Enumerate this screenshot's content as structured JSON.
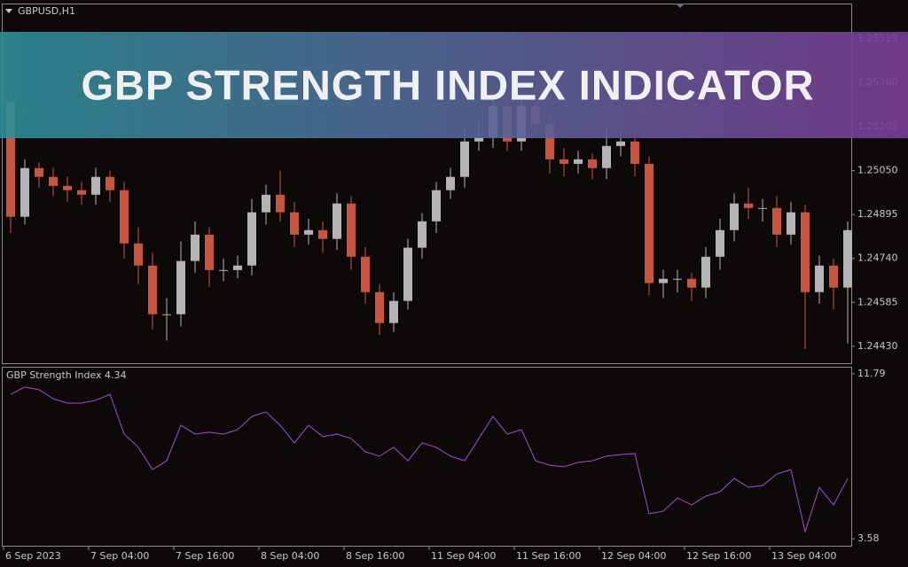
{
  "banner": "GBP STRENGTH INDEX INDICATOR",
  "chart_data": [
    {
      "type": "candlestick",
      "title": "GBPUSD,H1",
      "up_color": "#b4b4b4",
      "down_color": "#c8553f",
      "open": [
        1.25293,
        1.24887,
        1.25059,
        1.25028,
        1.24996,
        1.24981,
        1.24965,
        1.25028,
        1.24981,
        1.24793,
        1.24715,
        1.24543,
        1.24543,
        1.24731,
        1.24824,
        1.24699,
        1.24699,
        1.24715,
        1.24903,
        1.24965,
        1.24903,
        1.24824,
        1.2484,
        1.24809,
        1.24934,
        1.24746,
        1.24621,
        1.24512,
        1.2459,
        1.24778,
        1.24871,
        1.24981,
        1.25028,
        1.25153,
        1.25168,
        1.25278,
        1.25153,
        1.25278,
        1.25215,
        1.2509,
        1.25074,
        1.2509,
        1.25059,
        1.25137,
        1.25153,
        1.25074,
        1.24653,
        1.24668,
        1.24668,
        1.24637,
        1.24746,
        1.2484,
        1.24934,
        1.24918,
        1.24918,
        1.24824,
        1.24903,
        1.24621,
        1.24715,
        1.24637
      ],
      "high": [
        1.2533,
        1.2509,
        1.2508,
        1.2506,
        1.2503,
        1.2501,
        1.2506,
        1.2505,
        1.2501,
        1.2485,
        1.2476,
        1.246,
        1.248,
        1.2487,
        1.2485,
        1.2474,
        1.2475,
        1.2495,
        1.25,
        1.2505,
        1.2494,
        1.2488,
        1.2487,
        1.2497,
        1.2496,
        1.2478,
        1.2465,
        1.2462,
        1.2481,
        1.249,
        1.2501,
        1.2506,
        1.252,
        1.2523,
        1.2533,
        1.2531,
        1.2532,
        1.253,
        1.2525,
        1.2513,
        1.2512,
        1.2511,
        1.252,
        1.2519,
        1.2518,
        1.251,
        1.247,
        1.247,
        1.2469,
        1.2478,
        1.2488,
        1.2497,
        1.2499,
        1.2495,
        1.2496,
        1.2494,
        1.2493,
        1.2475,
        1.2474,
        1.2487
      ],
      "low": [
        1.2483,
        1.2486,
        1.2499,
        1.2496,
        1.2494,
        1.2493,
        1.2493,
        1.2494,
        1.2474,
        1.2465,
        1.2449,
        1.2445,
        1.245,
        1.2469,
        1.2464,
        1.2466,
        1.2467,
        1.2468,
        1.2486,
        1.2487,
        1.2478,
        1.2479,
        1.2476,
        1.2477,
        1.247,
        1.2458,
        1.2447,
        1.2448,
        1.2456,
        1.2474,
        1.2483,
        1.2495,
        1.2499,
        1.2512,
        1.2513,
        1.2512,
        1.2512,
        1.2517,
        1.2504,
        1.2503,
        1.2504,
        1.2502,
        1.2502,
        1.251,
        1.2503,
        1.2461,
        1.246,
        1.2462,
        1.2459,
        1.246,
        1.247,
        1.248,
        1.2488,
        1.2487,
        1.2478,
        1.2479,
        1.2442,
        1.2458,
        1.2456,
        1.2444
      ],
      "close": [
        1.24887,
        1.25059,
        1.25028,
        1.24996,
        1.24981,
        1.24965,
        1.25028,
        1.24981,
        1.24793,
        1.24715,
        1.24543,
        1.24543,
        1.24731,
        1.24824,
        1.24699,
        1.24699,
        1.24715,
        1.24903,
        1.24965,
        1.24903,
        1.24824,
        1.2484,
        1.24809,
        1.24934,
        1.24746,
        1.24621,
        1.24512,
        1.2459,
        1.24778,
        1.24871,
        1.24981,
        1.25028,
        1.25153,
        1.25168,
        1.25278,
        1.25153,
        1.25278,
        1.25215,
        1.2509,
        1.25074,
        1.2509,
        1.25059,
        1.25137,
        1.25153,
        1.25074,
        1.24653,
        1.24668,
        1.24668,
        1.24637,
        1.24746,
        1.2484,
        1.24934,
        1.24918,
        1.24918,
        1.24824,
        1.24903,
        1.24621,
        1.24715,
        1.24637,
        1.2484
      ],
      "ylim": [
        1.2437,
        1.2564
      ],
      "yticks": [
        1.25515,
        {
          "value": 1.2536,
          "label": "1.25360"
        },
        1.25205,
        {
          "value": 1.2505,
          "label": "1.25050"
        },
        1.24895,
        {
          "value": 1.2474,
          "label": "1.24740"
        },
        1.24585,
        {
          "value": 1.2443,
          "label": "1.24430"
        }
      ]
    },
    {
      "type": "line",
      "title": "GBP Strength Index 4.34",
      "color": "#a548e0",
      "categories": [
        "6 Sep 2023",
        null,
        null,
        null,
        null,
        null,
        "7 Sep 04:00",
        null,
        null,
        null,
        null,
        null,
        "7 Sep 16:00",
        null,
        null,
        null,
        null,
        null,
        "8 Sep 04:00",
        null,
        null,
        null,
        null,
        null,
        "8 Sep 16:00",
        null,
        null,
        null,
        null,
        null,
        "11 Sep 04:00",
        null,
        null,
        null,
        null,
        null,
        "11 Sep 16:00",
        null,
        null,
        null,
        null,
        null,
        "12 Sep 04:00",
        null,
        null,
        null,
        null,
        null,
        "12 Sep 16:00",
        null,
        null,
        null,
        null,
        null,
        "13 Sep 04:00",
        null,
        null,
        null,
        null,
        null
      ],
      "values": [
        10.77,
        11.13,
        11.0,
        10.55,
        10.33,
        10.33,
        10.47,
        10.77,
        8.79,
        8.13,
        7.02,
        7.46,
        9.23,
        8.79,
        8.88,
        8.79,
        9.01,
        9.67,
        9.89,
        9.23,
        8.35,
        9.23,
        8.66,
        8.79,
        8.57,
        7.91,
        7.69,
        8.13,
        7.46,
        8.35,
        8.13,
        7.69,
        7.46,
        8.57,
        9.67,
        8.79,
        9.01,
        7.46,
        7.24,
        7.16,
        7.38,
        7.46,
        7.69,
        7.77,
        7.82,
        4.82,
        4.95,
        5.61,
        5.26,
        5.7,
        5.92,
        6.58,
        6.14,
        6.23,
        6.8,
        7.02,
        3.93,
        6.14,
        5.26,
        6.58
      ],
      "ylim": [
        3.23,
        12.14
      ],
      "yticks": [
        11.79,
        3.58
      ]
    }
  ]
}
